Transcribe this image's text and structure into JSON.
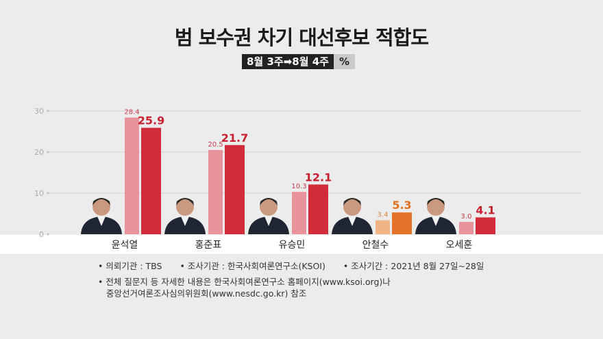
{
  "title": "범 보수권 차기 대선후보 적합도",
  "period": {
    "label": "8월 3주➡8월 4주",
    "unit": "%"
  },
  "chart_data": {
    "type": "bar",
    "categories": [
      "윤석열",
      "홍준표",
      "유승민",
      "안철수",
      "오세훈"
    ],
    "series": [
      {
        "name": "8월 3주",
        "values": [
          28.4,
          20.5,
          10.3,
          3.4,
          3.0
        ]
      },
      {
        "name": "8월 4주",
        "values": [
          25.9,
          21.7,
          12.1,
          5.3,
          4.1
        ]
      }
    ],
    "yticks": [
      "0",
      "10",
      "20",
      "30"
    ],
    "ylim": [
      0,
      30
    ],
    "grid": true,
    "colors": {
      "prev": "#e8929c",
      "curr": "#d22b3a",
      "prev_highlight": "#f0b487",
      "curr_highlight": "#e6722a",
      "highlight_index": 3
    }
  },
  "notes": {
    "requester": "• 의뢰기관 : TBS",
    "agency": "• 조사기관 : 한국사회여론연구소(KSOI)",
    "dates": "• 조사기간 : 2021년 8월 27일~28일",
    "detail_line1": "• 전체 질문지 등 자세한 내용은 한국사회여론연구소 홈페이지(www.ksoi.org)나",
    "detail_line2": "중앙선거여론조사심의위원회(www.nesdc.go.kr) 참조"
  }
}
